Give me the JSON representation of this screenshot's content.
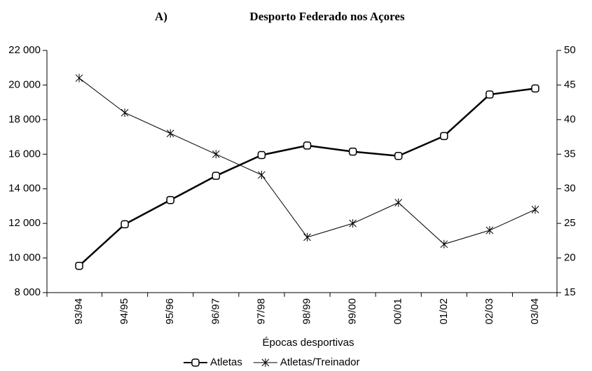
{
  "chart_data": {
    "type": "line",
    "panel_label": "A)",
    "title": "Desporto Federado nos  Açores",
    "x_label": "Épocas desportivas",
    "categories": [
      "93/94",
      "94/95",
      "95/96",
      "96/97",
      "97/98",
      "98/99",
      "99/00",
      "00/01",
      "01/02",
      "02/03",
      "03/04"
    ],
    "series": [
      {
        "name": "Atletas",
        "color": "#000000",
        "marker": "square",
        "values": [
          9550,
          11950,
          13350,
          14750,
          15950,
          16500,
          16150,
          15900,
          17050,
          19450,
          19800
        ]
      },
      {
        "name": "Atletas/Treinador",
        "color": "#000000",
        "marker": "asterisk",
        "axis": "y2",
        "values": [
          46,
          41,
          38,
          35,
          32,
          23,
          25,
          28,
          22,
          24,
          27
        ]
      }
    ],
    "ylim": [
      8000,
      22000
    ],
    "yticks": [
      {
        "value": 8000,
        "label": "8 000"
      },
      {
        "value": 10000,
        "label": "10 000"
      },
      {
        "value": 12000,
        "label": "12 000"
      },
      {
        "value": 14000,
        "label": "14 000"
      },
      {
        "value": 16000,
        "label": "16 000"
      },
      {
        "value": 18000,
        "label": "18 000"
      },
      {
        "value": 20000,
        "label": "20 000"
      },
      {
        "value": 22000,
        "label": "22 000"
      }
    ],
    "y2lim": [
      15,
      50
    ],
    "y2ticks": [
      15,
      20,
      25,
      30,
      35,
      40,
      45,
      50
    ],
    "legend": "bottom"
  }
}
